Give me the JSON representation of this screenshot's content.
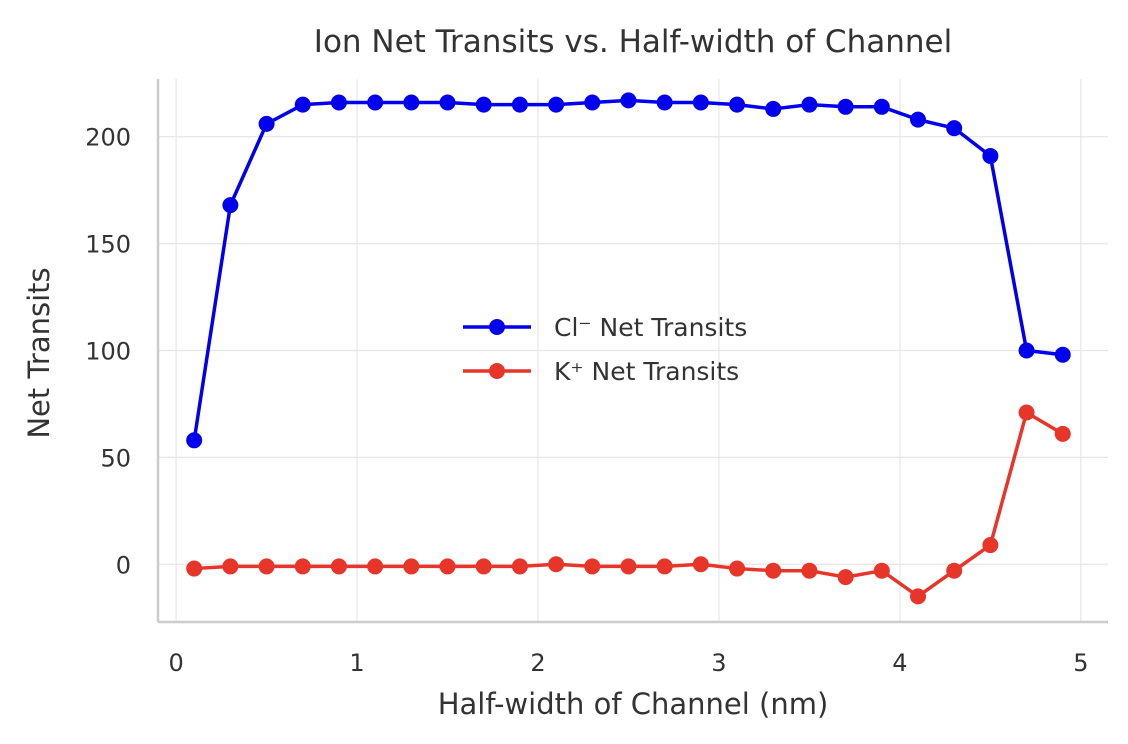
{
  "chart_data": {
    "type": "line",
    "title": "Ion Net Transits vs. Half-width of Channel",
    "xlabel": "Half-width of Channel (nm)",
    "ylabel": "Net Transits",
    "xlim": [
      -0.1,
      5.15
    ],
    "ylim": [
      -27,
      227
    ],
    "xticks": [
      0,
      1,
      2,
      3,
      4,
      5
    ],
    "yticks": [
      0,
      50,
      100,
      150,
      200
    ],
    "grid": true,
    "legend_position": "center-right",
    "x": [
      0.1,
      0.3,
      0.5,
      0.7,
      0.9,
      1.1,
      1.3,
      1.5,
      1.7,
      1.9,
      2.1,
      2.3,
      2.5,
      2.7,
      2.9,
      3.1,
      3.3,
      3.5,
      3.7,
      3.9,
      4.1,
      4.3,
      4.5,
      4.7,
      4.9
    ],
    "series": [
      {
        "name": "Cl⁻ Net Transits",
        "color": "#0000ee",
        "values": [
          58,
          168,
          206,
          215,
          216,
          216,
          216,
          216,
          215,
          215,
          215,
          216,
          217,
          216,
          216,
          215,
          213,
          215,
          214,
          214,
          208,
          204,
          191,
          100,
          98
        ]
      },
      {
        "name": "K⁺ Net Transits",
        "color": "#e8352a",
        "values": [
          -2,
          -1,
          -1,
          -1,
          -1,
          -1,
          -1,
          -1,
          -1,
          -1,
          0,
          -1,
          -1,
          -1,
          0,
          -2,
          -3,
          -3,
          -6,
          -3,
          -15,
          -3,
          9,
          71,
          61
        ]
      }
    ]
  }
}
